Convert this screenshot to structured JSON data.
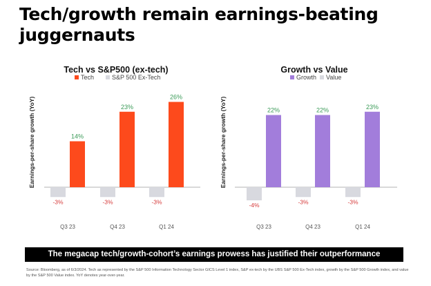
{
  "title": "Tech/growth remain earnings-beating juggernauts",
  "banner": "The megacap tech/growth-cohort’s earnings prowess has justified their outperformance",
  "source": "Source: Bloomberg, as of 6/3/2024. Tech as represented by the S&P 500 Information Technology Sector GICS Level 1 index, S&P ex-tech by the UBS S&P 500 Ex-Tech index, growth by the S&P 500 Growth index, and value by the S&P 500 Value index. YoY denotes year-over-year.",
  "colors": {
    "primary_left": "#fd4a1c",
    "primary_right": "#a27ddb",
    "secondary": "#d8d9df",
    "positive_label": "#3a9a57",
    "negative_label": "#d63b3b"
  },
  "chart_data": [
    {
      "type": "bar",
      "title": "Tech vs S&P500 (ex-tech)",
      "ylabel": "Earnings-per-share growth (YoY)",
      "xlabel": "",
      "categories": [
        "Q3 23",
        "Q4 23",
        "Q1 24"
      ],
      "series": [
        {
          "name": "Tech",
          "values": [
            14,
            23,
            26
          ],
          "labels": [
            "14%",
            "23%",
            "26%"
          ]
        },
        {
          "name": "S&P 500 Ex-Tech",
          "values": [
            -3,
            -3,
            -3
          ],
          "labels": [
            "-3%",
            "-3%",
            "-3%"
          ]
        }
      ],
      "ylim": [
        -4,
        27
      ],
      "grid": false,
      "legend": "top"
    },
    {
      "type": "bar",
      "title": "Growth vs Value",
      "ylabel": "Earnings-per-share growth (YoY)",
      "xlabel": "",
      "categories": [
        "Q3 23",
        "Q4 23",
        "Q1 24"
      ],
      "series": [
        {
          "name": "Growth",
          "values": [
            22,
            22,
            23
          ],
          "labels": [
            "22%",
            "22%",
            "23%"
          ]
        },
        {
          "name": "Value",
          "values": [
            -4,
            -3,
            -3
          ],
          "labels": [
            "-4%",
            "-3%",
            "-3%"
          ]
        }
      ],
      "ylim": [
        -4,
        27
      ],
      "grid": false,
      "legend": "top"
    }
  ]
}
